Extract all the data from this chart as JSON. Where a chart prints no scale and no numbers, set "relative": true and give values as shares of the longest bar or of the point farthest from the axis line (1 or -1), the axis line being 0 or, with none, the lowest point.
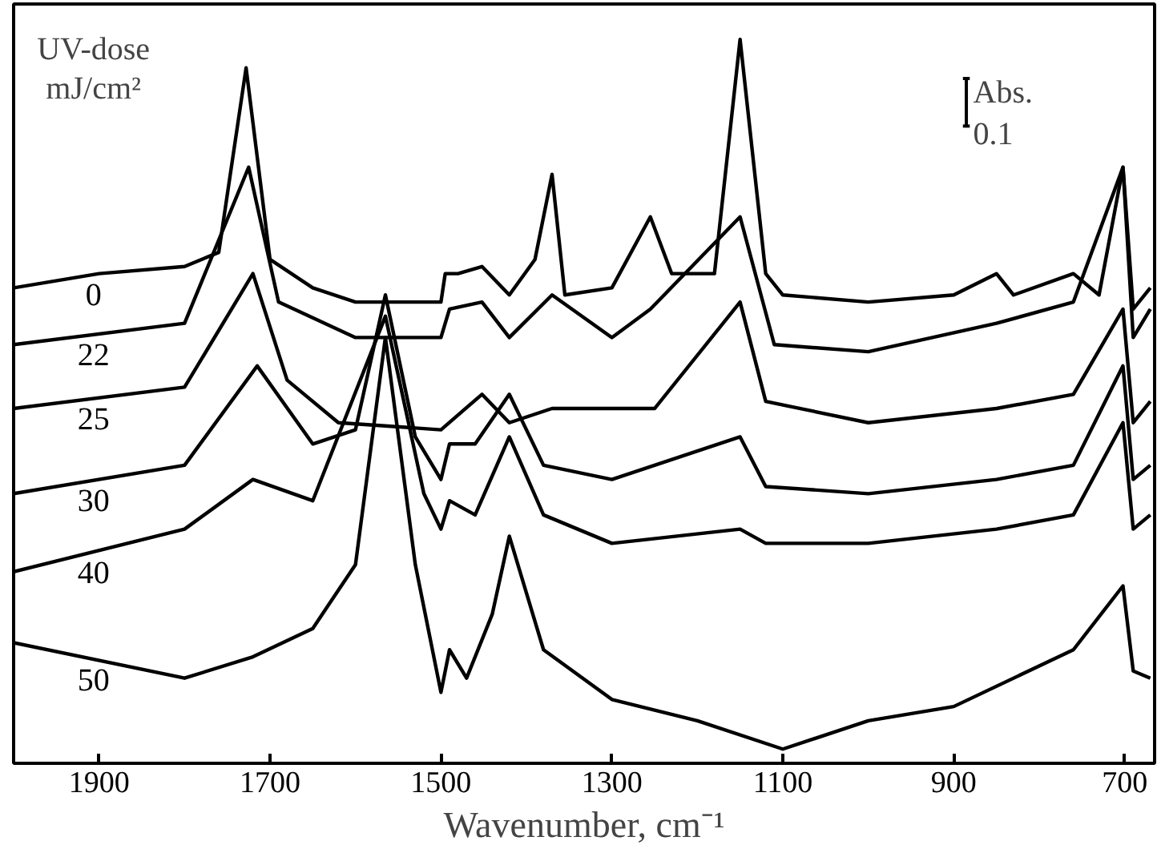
{
  "chart_data": {
    "type": "line",
    "relative": true,
    "xlabel": "Wavenumber, cm⁻¹",
    "legend_title": "UV-dose\nmJ/cm²",
    "xlim": [
      2000,
      665
    ],
    "xticks": [
      1900,
      1700,
      1500,
      1300,
      1100,
      900,
      700
    ],
    "annotations": [
      "Abs.\n0.1"
    ],
    "series": [
      {
        "name": "0",
        "color": "#000000",
        "x": [
          2000,
          1900,
          1800,
          1760,
          1728,
          1700,
          1650,
          1600,
          1500,
          1495,
          1480,
          1452,
          1420,
          1390,
          1370,
          1355,
          1300,
          1255,
          1230,
          1180,
          1150,
          1120,
          1100,
          1000,
          900,
          850,
          830,
          760,
          730,
          702,
          690,
          670
        ],
        "values": [
          0.65,
          0.67,
          0.68,
          0.7,
          0.96,
          0.69,
          0.65,
          0.63,
          0.63,
          0.67,
          0.67,
          0.68,
          0.64,
          0.69,
          0.81,
          0.64,
          0.65,
          0.75,
          0.67,
          0.67,
          1.0,
          0.67,
          0.64,
          0.63,
          0.64,
          0.67,
          0.64,
          0.67,
          0.64,
          0.82,
          0.62,
          0.65
        ]
      },
      {
        "name": "22",
        "color": "#000000",
        "x": [
          2000,
          1800,
          1725,
          1690,
          1600,
          1500,
          1490,
          1452,
          1420,
          1370,
          1300,
          1255,
          1150,
          1110,
          1000,
          850,
          760,
          702,
          690,
          670
        ],
        "values": [
          0.57,
          0.6,
          0.82,
          0.63,
          0.58,
          0.58,
          0.62,
          0.63,
          0.58,
          0.64,
          0.58,
          0.62,
          0.75,
          0.57,
          0.56,
          0.6,
          0.63,
          0.82,
          0.58,
          0.62
        ]
      },
      {
        "name": "25",
        "color": "#000000",
        "x": [
          2000,
          1800,
          1720,
          1680,
          1620,
          1500,
          1452,
          1420,
          1370,
          1250,
          1150,
          1120,
          1000,
          850,
          760,
          702,
          690,
          670
        ],
        "values": [
          0.48,
          0.51,
          0.67,
          0.52,
          0.46,
          0.45,
          0.5,
          0.46,
          0.48,
          0.48,
          0.63,
          0.49,
          0.46,
          0.48,
          0.5,
          0.62,
          0.46,
          0.49
        ]
      },
      {
        "name": "30",
        "color": "#000000",
        "x": [
          2000,
          1800,
          1715,
          1650,
          1600,
          1565,
          1530,
          1500,
          1490,
          1460,
          1420,
          1380,
          1300,
          1150,
          1120,
          1000,
          850,
          760,
          702,
          690,
          670
        ],
        "values": [
          0.36,
          0.4,
          0.54,
          0.43,
          0.45,
          0.64,
          0.44,
          0.38,
          0.43,
          0.43,
          0.5,
          0.4,
          0.38,
          0.44,
          0.37,
          0.36,
          0.38,
          0.4,
          0.54,
          0.38,
          0.4
        ]
      },
      {
        "name": "40",
        "color": "#000000",
        "x": [
          2000,
          1800,
          1720,
          1650,
          1565,
          1520,
          1500,
          1490,
          1460,
          1420,
          1380,
          1300,
          1150,
          1120,
          1000,
          850,
          760,
          702,
          690,
          670
        ],
        "values": [
          0.25,
          0.31,
          0.38,
          0.35,
          0.61,
          0.36,
          0.31,
          0.35,
          0.33,
          0.44,
          0.33,
          0.29,
          0.31,
          0.29,
          0.29,
          0.31,
          0.33,
          0.46,
          0.31,
          0.33
        ]
      },
      {
        "name": "50",
        "color": "#000000",
        "x": [
          2000,
          1800,
          1720,
          1650,
          1600,
          1565,
          1530,
          1500,
          1490,
          1470,
          1440,
          1420,
          1380,
          1300,
          1200,
          1100,
          1000,
          900,
          760,
          702,
          690,
          670
        ],
        "values": [
          0.15,
          0.1,
          0.13,
          0.17,
          0.26,
          0.58,
          0.26,
          0.08,
          0.14,
          0.1,
          0.19,
          0.3,
          0.14,
          0.07,
          0.04,
          0.0,
          0.04,
          0.06,
          0.14,
          0.23,
          0.11,
          0.1
        ]
      }
    ]
  }
}
